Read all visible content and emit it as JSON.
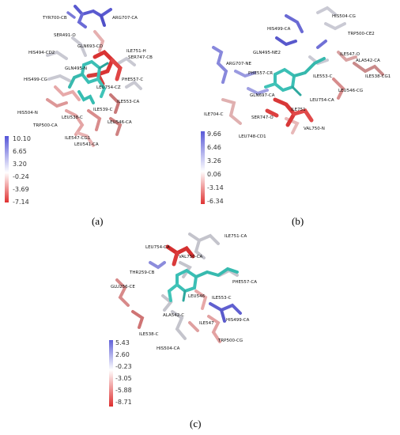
{
  "panels": [
    {
      "id": "a",
      "tag": "(a)",
      "scale": [
        "10.10",
        "6.65",
        "3.20",
        "-0.24",
        "-3.69",
        "-7.14"
      ],
      "labels": [
        "TYR700-CB",
        "ARG707-CA",
        "SER491-O",
        "GLN693-CD",
        "ILE751-H",
        "SER747-CB",
        "HIS494-CD2",
        "GLN495-N",
        "PHE557-C",
        "HIS499-CG",
        "LEU754-CZ",
        "ILE553-CA",
        "ILE539-C",
        "HIS504-N",
        "LEU538-C",
        "LEU546-CA",
        "TRP500-CA",
        "ILE547-CG1",
        "LEU541-CA"
      ]
    },
    {
      "id": "b",
      "tag": "(b)",
      "scale": [
        "9.66",
        "6.46",
        "3.26",
        "0.06",
        "-3.14",
        "-6.34"
      ],
      "labels": [
        "HIS504-CG",
        "HIS499-CA",
        "TRP500-CE2",
        "GLN495-NE2",
        "ARG707-NE",
        "ILE547-O",
        "ALA542-CA",
        "PHE557-CR",
        "ILE553-C",
        "ILE538-CG1",
        "LEU546-CG",
        "GLN697-CA",
        "LEU754-CA",
        "ILE751",
        "ILE704-C",
        "SER747-O",
        "VAL750-N",
        "LEU748-CD1"
      ]
    },
    {
      "id": "c",
      "tag": "(c)",
      "scale": [
        "5.43",
        "2.60",
        "-0.23",
        "-3.05",
        "-5.88",
        "-8.71"
      ],
      "labels": [
        "LEU754-CA",
        "ILE751-CA",
        "VAL750-CA",
        "THR259-CB",
        "PHE557-CA",
        "GLU256-CE",
        "LEU546",
        "ILE553-C",
        "ALA542-C",
        "HIS499-CA",
        "ILE538-C",
        "ILE547",
        "HIS504-CA",
        "TRP500-CG"
      ]
    }
  ]
}
